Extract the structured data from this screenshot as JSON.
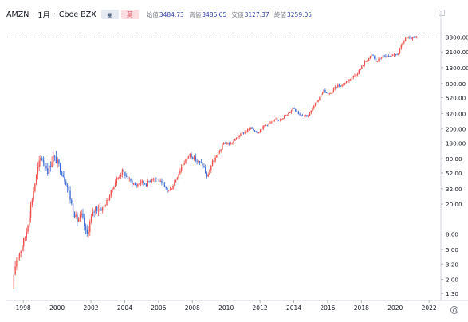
{
  "header": {
    "symbol": "AMZN",
    "interval": "1月",
    "exchange": "Cboe BZX",
    "badge_eye": "◉",
    "badge_red": "莫",
    "ohlc": [
      {
        "label": "始値",
        "value": "3484.73"
      },
      {
        "label": "高値",
        "value": "3486.65"
      },
      {
        "label": "安値",
        "value": "3127.37"
      },
      {
        "label": "終値",
        "value": "3259.05"
      }
    ]
  },
  "chart_data": {
    "type": "candlestick",
    "scale": "log",
    "y_ticks": [
      "3300.00",
      "2100.00",
      "1300.00",
      "800.00",
      "520.00",
      "320.00",
      "200.00",
      "130.00",
      "80.00",
      "52.00",
      "32.00",
      "20.00",
      "8.00",
      "5.00",
      "3.20",
      "2.00",
      "1.30"
    ],
    "x_ticks": [
      "1998",
      "2000",
      "2002",
      "2004",
      "2006",
      "2008",
      "2010",
      "2012",
      "2014",
      "2016",
      "2018",
      "2020",
      "2022"
    ],
    "last_price_line": 3300,
    "up_color": "#ef5350",
    "down_color": "#3f6fd6",
    "xlim": [
      1997.0,
      2022.7
    ],
    "ylim": [
      1.05,
      5200
    ],
    "price_path": [
      [
        1997.4,
        1.5
      ],
      [
        1997.6,
        3.5
      ],
      [
        1997.9,
        5.0
      ],
      [
        1998.2,
        8.0
      ],
      [
        1998.5,
        20.0
      ],
      [
        1998.9,
        60.0
      ],
      [
        1999.1,
        85.0
      ],
      [
        1999.3,
        70.0
      ],
      [
        1999.5,
        55.0
      ],
      [
        1999.8,
        85.0
      ],
      [
        2000.0,
        75.0
      ],
      [
        2000.3,
        55.0
      ],
      [
        2000.6,
        38.0
      ],
      [
        2000.9,
        20.0
      ],
      [
        2001.2,
        12.0
      ],
      [
        2001.5,
        14.0
      ],
      [
        2001.8,
        7.5
      ],
      [
        2002.0,
        12.0
      ],
      [
        2002.3,
        18.0
      ],
      [
        2002.7,
        17.0
      ],
      [
        2003.0,
        22.0
      ],
      [
        2003.5,
        40.0
      ],
      [
        2003.9,
        55.0
      ],
      [
        2004.3,
        42.0
      ],
      [
        2004.7,
        35.0
      ],
      [
        2005.0,
        40.0
      ],
      [
        2005.3,
        37.0
      ],
      [
        2005.7,
        45.0
      ],
      [
        2006.0,
        43.0
      ],
      [
        2006.4,
        33.0
      ],
      [
        2006.7,
        30.0
      ],
      [
        2007.0,
        40.0
      ],
      [
        2007.5,
        70.0
      ],
      [
        2007.9,
        92.0
      ],
      [
        2008.3,
        75.0
      ],
      [
        2008.7,
        65.0
      ],
      [
        2008.9,
        45.0
      ],
      [
        2009.2,
        70.0
      ],
      [
        2009.6,
        95.0
      ],
      [
        2009.9,
        130.0
      ],
      [
        2010.3,
        125.0
      ],
      [
        2010.7,
        155.0
      ],
      [
        2011.0,
        175.0
      ],
      [
        2011.5,
        205.0
      ],
      [
        2011.9,
        180.0
      ],
      [
        2012.3,
        220.0
      ],
      [
        2012.8,
        250.0
      ],
      [
        2013.2,
        270.0
      ],
      [
        2013.7,
        310.0
      ],
      [
        2014.0,
        385.0
      ],
      [
        2014.4,
        310.0
      ],
      [
        2014.9,
        300.0
      ],
      [
        2015.3,
        420.0
      ],
      [
        2015.8,
        650.0
      ],
      [
        2016.1,
        560.0
      ],
      [
        2016.6,
        750.0
      ],
      [
        2016.9,
        760.0
      ],
      [
        2017.3,
        900.0
      ],
      [
        2017.8,
        1100.0
      ],
      [
        2018.2,
        1500.0
      ],
      [
        2018.7,
        1950.0
      ],
      [
        2018.9,
        1550.0
      ],
      [
        2019.3,
        1850.0
      ],
      [
        2019.8,
        1800.0
      ],
      [
        2020.2,
        2000.0
      ],
      [
        2020.5,
        2800.0
      ],
      [
        2020.7,
        3300.0
      ],
      [
        2020.9,
        3150.0
      ],
      [
        2021.1,
        3200.0
      ],
      [
        2021.3,
        3250.0
      ]
    ]
  }
}
